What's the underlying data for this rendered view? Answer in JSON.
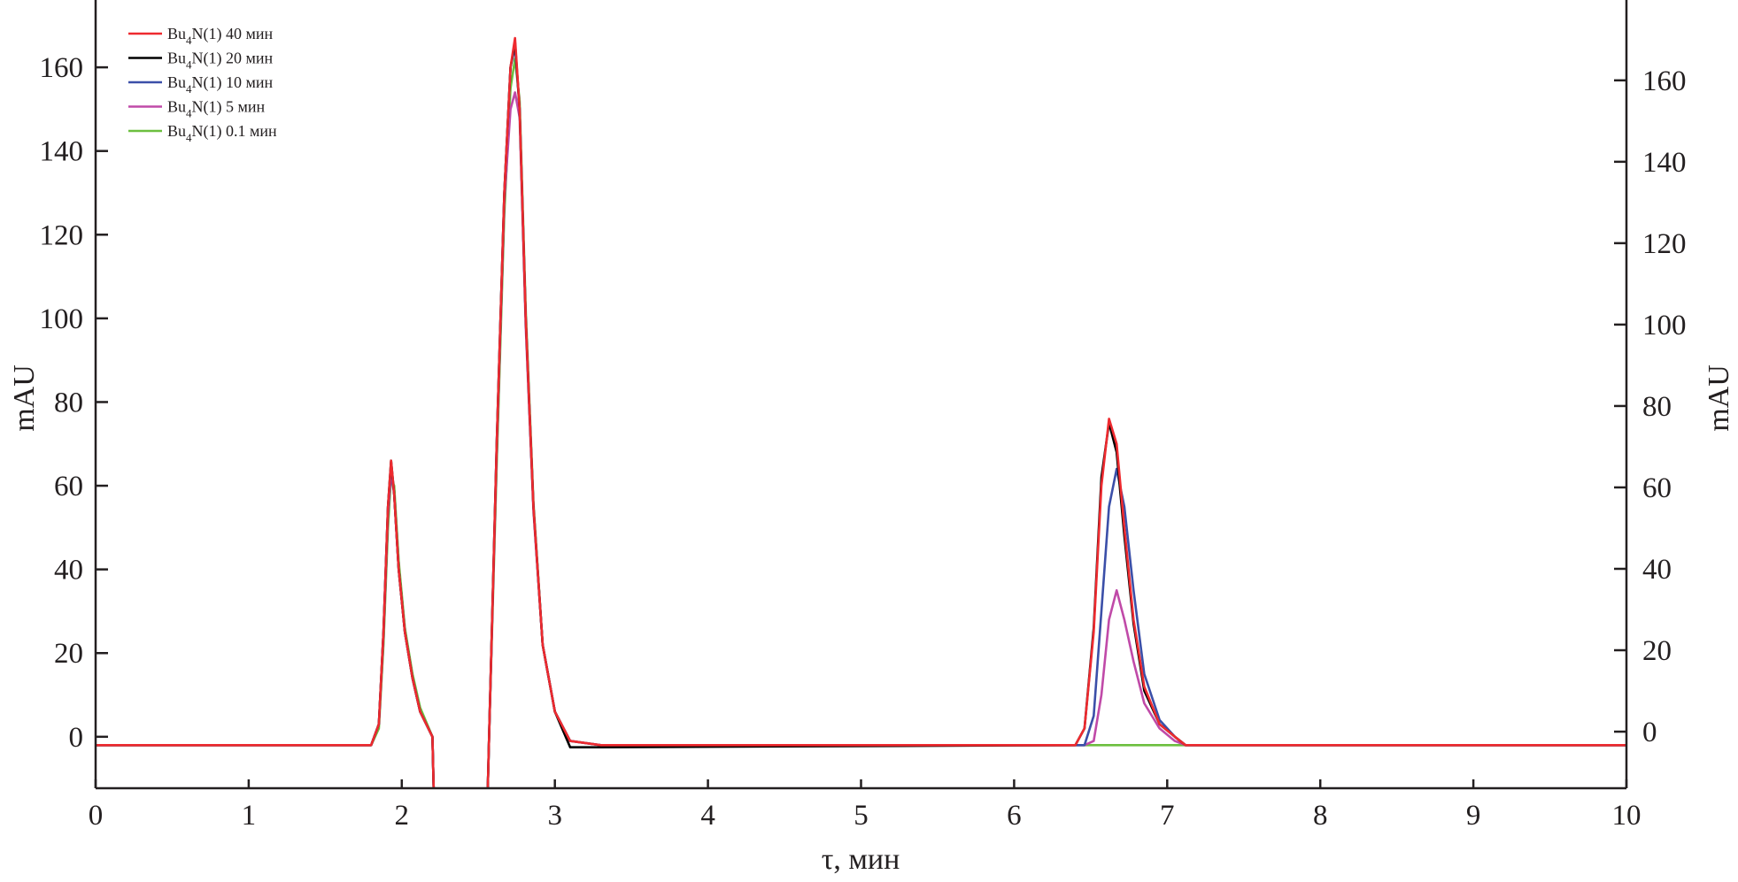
{
  "chart_data": {
    "type": "line",
    "title": "",
    "xlabel": "τ, мин",
    "ylabel": "mAU",
    "ylabel_right": "mAU",
    "xlim": [
      0,
      10
    ],
    "ylim": [
      -12.3,
      174.4
    ],
    "ylim_right": [
      -13.9,
      178
    ],
    "xticks": [
      0,
      1,
      2,
      3,
      4,
      5,
      6,
      7,
      8,
      9,
      10
    ],
    "yticks": [
      0,
      20,
      40,
      60,
      80,
      100,
      120,
      140,
      160
    ],
    "yticks_right": [
      0,
      20,
      40,
      60,
      80,
      100,
      120,
      140,
      160
    ],
    "grid": false,
    "legend_position": "top-left",
    "x": [
      0,
      1.8,
      1.85,
      1.88,
      1.91,
      1.93,
      1.95,
      1.98,
      2.02,
      2.07,
      2.12,
      2.2,
      2.21,
      2.56,
      2.57,
      2.62,
      2.67,
      2.71,
      2.74,
      2.77,
      2.81,
      2.86,
      2.92,
      3.0,
      3.1,
      3.3,
      6.4,
      6.46,
      6.52,
      6.57,
      6.62,
      6.67,
      6.72,
      6.78,
      6.85,
      6.95,
      7.05,
      7.12,
      10
    ],
    "series": [
      {
        "name_base": "Bu",
        "name_sub": "4",
        "name_rest": "N(1) 0.1 мин",
        "color": "#6cbf3f",
        "values": [
          -2,
          -2,
          2,
          22,
          50,
          62,
          60,
          42,
          26,
          15,
          7,
          0,
          -15,
          -15,
          0,
          65,
          125,
          155,
          162,
          152,
          102,
          56,
          22,
          6,
          -1,
          -2,
          -2,
          -2,
          -2,
          -2,
          -2,
          -2,
          -2,
          -2,
          -2,
          -2,
          -2,
          -2,
          -2
        ]
      },
      {
        "name_base": "Bu",
        "name_sub": "4",
        "name_rest": "N(1) 5 мин",
        "color": "#c04aa8",
        "values": [
          -2,
          -2,
          3,
          24,
          53,
          63,
          58,
          40,
          25,
          14,
          6,
          0,
          -15,
          -15,
          0,
          68,
          128,
          150,
          154,
          148,
          98,
          54,
          22,
          6,
          -1,
          -2,
          -2,
          -2,
          -1,
          10,
          28,
          35,
          28,
          18,
          8,
          2,
          -1,
          -2,
          -2
        ]
      },
      {
        "name_base": "Bu",
        "name_sub": "4",
        "name_rest": "N(1) 10 мин",
        "color": "#3b4fa8",
        "values": [
          -2,
          -2,
          3,
          25,
          55,
          65,
          58,
          40,
          25,
          14,
          6,
          0,
          -15,
          -15,
          0,
          70,
          130,
          160,
          165,
          150,
          100,
          55,
          22,
          6,
          -1,
          -2,
          -2,
          -2,
          5,
          30,
          55,
          64,
          55,
          35,
          15,
          4,
          0,
          -2,
          -2
        ]
      },
      {
        "name_base": "Bu",
        "name_sub": "4",
        "name_rest": "N(1) 20 мин",
        "color": "#000000",
        "values": [
          -2,
          -2,
          3,
          25,
          55,
          66,
          58,
          40,
          25,
          14,
          6,
          0,
          -15,
          -15,
          0,
          70,
          130,
          160,
          166,
          150,
          100,
          55,
          22,
          6,
          -2.5,
          -2.5,
          -2,
          2,
          26,
          62,
          75,
          68,
          48,
          27,
          11,
          3,
          0,
          -2,
          -2
        ]
      },
      {
        "name_base": "Bu",
        "name_sub": "4",
        "name_rest": "N(1) 40 мин",
        "color": "#ee2a2f",
        "values": [
          -2,
          -2,
          3,
          25,
          55,
          66,
          58,
          40,
          25,
          14,
          6,
          0,
          -15,
          -15,
          0,
          70,
          130,
          160,
          167,
          150,
          100,
          55,
          22,
          6,
          -1,
          -2,
          -2,
          2,
          25,
          60,
          76,
          70,
          50,
          28,
          12,
          3,
          0,
          -2,
          -2
        ]
      }
    ],
    "legend_order": [
      4,
      3,
      2,
      1,
      0
    ]
  }
}
